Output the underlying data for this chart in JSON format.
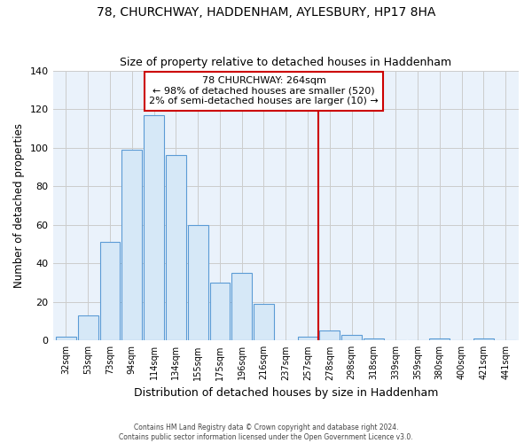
{
  "title": "78, CHURCHWAY, HADDENHAM, AYLESBURY, HP17 8HA",
  "subtitle": "Size of property relative to detached houses in Haddenham",
  "xlabel": "Distribution of detached houses by size in Haddenham",
  "ylabel": "Number of detached properties",
  "bar_labels": [
    "32sqm",
    "53sqm",
    "73sqm",
    "94sqm",
    "114sqm",
    "134sqm",
    "155sqm",
    "175sqm",
    "196sqm",
    "216sqm",
    "237sqm",
    "257sqm",
    "278sqm",
    "298sqm",
    "318sqm",
    "339sqm",
    "359sqm",
    "380sqm",
    "400sqm",
    "421sqm",
    "441sqm"
  ],
  "bar_heights": [
    2,
    13,
    51,
    99,
    117,
    96,
    60,
    30,
    35,
    19,
    0,
    2,
    5,
    3,
    1,
    0,
    0,
    1,
    0,
    1,
    0
  ],
  "bar_color": "#d6e8f7",
  "bar_edge_color": "#5b9bd5",
  "vline_x": 11.5,
  "vline_color": "#cc0000",
  "annotation_title": "78 CHURCHWAY: 264sqm",
  "annotation_line1": "← 98% of detached houses are smaller (520)",
  "annotation_line2": "2% of semi-detached houses are larger (10) →",
  "annotation_box_color": "#ffffff",
  "annotation_box_edge": "#cc0000",
  "ylim": [
    0,
    140
  ],
  "yticks": [
    0,
    20,
    40,
    60,
    80,
    100,
    120,
    140
  ],
  "footer_line1": "Contains HM Land Registry data © Crown copyright and database right 2024.",
  "footer_line2": "Contains public sector information licensed under the Open Government Licence v3.0.",
  "bg_color": "#ffffff",
  "grid_color": "#cccccc",
  "plot_bg_color": "#eaf2fb"
}
